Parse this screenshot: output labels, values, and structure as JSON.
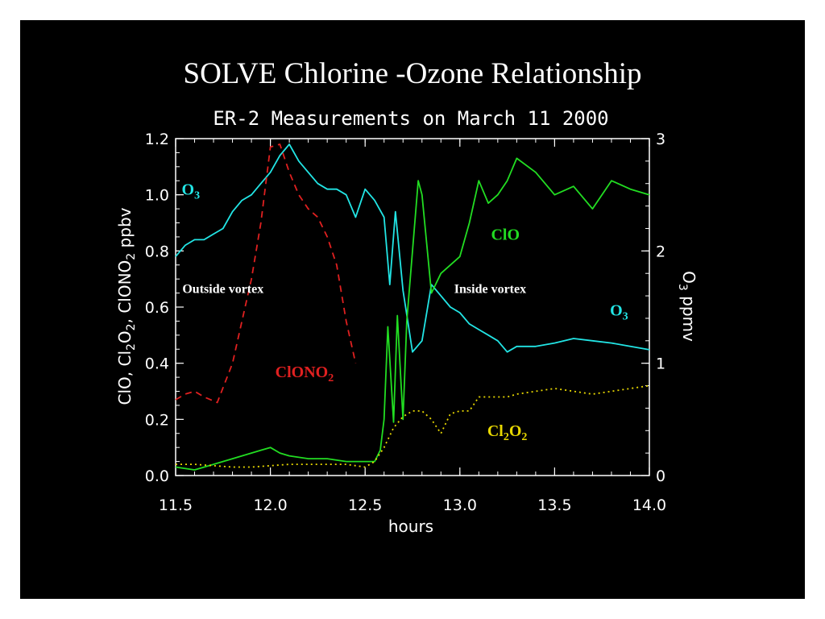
{
  "slide_title": "SOLVE  Chlorine -Ozone Relationship",
  "chart_data": {
    "type": "line",
    "title": "ER-2 Measurements on March 11  2000",
    "xlabel": "hours",
    "ylabel_left": "ClO, Cl2O2, ClONO2  ppbv",
    "ylabel_left_parts": [
      "ClO, Cl",
      "2",
      "O",
      "2",
      ", ClONO",
      "2",
      "  ppbv"
    ],
    "ylabel_right": "O3 ppmv",
    "ylabel_right_parts": [
      "O",
      "3",
      " ppmv"
    ],
    "xlim": [
      11.5,
      14.0
    ],
    "ylim_left": [
      0.0,
      1.2
    ],
    "ylim_right": [
      0,
      3
    ],
    "x_ticks": [
      "11.5",
      "12.0",
      "12.5",
      "13.0",
      "13.5",
      "14.0"
    ],
    "y_left_ticks": [
      "0.0",
      "0.2",
      "0.4",
      "0.6",
      "0.8",
      "1.0",
      "1.2"
    ],
    "y_right_ticks": [
      "0",
      "1",
      "2",
      "3"
    ],
    "grid": false,
    "background": "#000000",
    "colors": {
      "O3": "#22e5e5",
      "ClO": "#22dd22",
      "ClONO2": "#e02020",
      "Cl2O2": "#e8d800",
      "axes": "#ffffff"
    },
    "series": [
      {
        "name": "O3",
        "axis": "right",
        "style": "solid",
        "x": [
          11.5,
          11.55,
          11.6,
          11.65,
          11.7,
          11.75,
          11.8,
          11.85,
          11.9,
          11.95,
          12.0,
          12.05,
          12.1,
          12.15,
          12.2,
          12.25,
          12.3,
          12.35,
          12.4,
          12.45,
          12.5,
          12.55,
          12.6,
          12.63,
          12.66,
          12.7,
          12.75,
          12.8,
          12.85,
          12.9,
          12.95,
          13.0,
          13.05,
          13.1,
          13.15,
          13.2,
          13.25,
          13.3,
          13.4,
          13.5,
          13.6,
          13.7,
          13.8,
          13.9,
          14.0
        ],
        "y": [
          1.95,
          2.05,
          2.1,
          2.1,
          2.15,
          2.2,
          2.35,
          2.45,
          2.5,
          2.6,
          2.7,
          2.85,
          2.95,
          2.8,
          2.7,
          2.6,
          2.55,
          2.55,
          2.5,
          2.3,
          2.55,
          2.45,
          2.3,
          1.7,
          2.35,
          1.65,
          1.1,
          1.2,
          1.7,
          1.6,
          1.5,
          1.45,
          1.35,
          1.3,
          1.25,
          1.2,
          1.1,
          1.15,
          1.15,
          1.18,
          1.22,
          1.2,
          1.18,
          1.15,
          1.12
        ],
        "label": "O3"
      },
      {
        "name": "ClO",
        "axis": "left",
        "style": "solid",
        "x": [
          11.5,
          11.6,
          11.7,
          11.8,
          11.9,
          11.95,
          12.0,
          12.05,
          12.1,
          12.2,
          12.3,
          12.4,
          12.5,
          12.55,
          12.58,
          12.6,
          12.62,
          12.65,
          12.67,
          12.7,
          12.72,
          12.75,
          12.78,
          12.8,
          12.85,
          12.9,
          12.95,
          13.0,
          13.05,
          13.1,
          13.15,
          13.2,
          13.25,
          13.3,
          13.4,
          13.5,
          13.6,
          13.7,
          13.8,
          13.9,
          14.0
        ],
        "y": [
          0.03,
          0.02,
          0.04,
          0.06,
          0.08,
          0.09,
          0.1,
          0.08,
          0.07,
          0.06,
          0.06,
          0.05,
          0.05,
          0.05,
          0.09,
          0.2,
          0.53,
          0.19,
          0.57,
          0.2,
          0.55,
          0.8,
          1.05,
          1.0,
          0.65,
          0.72,
          0.75,
          0.78,
          0.9,
          1.05,
          0.97,
          1.0,
          1.05,
          1.13,
          1.08,
          1.0,
          1.03,
          0.95,
          1.05,
          1.02,
          1.0
        ],
        "label": "ClO"
      },
      {
        "name": "ClONO2",
        "axis": "left",
        "style": "dashed",
        "x": [
          11.5,
          11.55,
          11.6,
          11.65,
          11.72,
          11.8,
          11.85,
          11.9,
          11.95,
          12.0,
          12.05,
          12.1,
          12.15,
          12.2,
          12.25,
          12.3,
          12.35,
          12.4,
          12.45
        ],
        "y": [
          0.27,
          0.29,
          0.3,
          0.28,
          0.26,
          0.4,
          0.55,
          0.7,
          0.9,
          1.17,
          1.18,
          1.08,
          1.0,
          0.95,
          0.92,
          0.85,
          0.75,
          0.55,
          0.4
        ],
        "label": "ClONO2"
      },
      {
        "name": "Cl2O2",
        "axis": "left",
        "style": "dotted",
        "x": [
          11.5,
          11.6,
          11.7,
          11.8,
          11.9,
          12.0,
          12.1,
          12.2,
          12.3,
          12.4,
          12.5,
          12.55,
          12.6,
          12.65,
          12.7,
          12.75,
          12.8,
          12.85,
          12.9,
          12.95,
          13.0,
          13.05,
          13.1,
          13.15,
          13.2,
          13.25,
          13.3,
          13.4,
          13.5,
          13.6,
          13.7,
          13.8,
          13.9,
          14.0
        ],
        "y": [
          0.04,
          0.04,
          0.035,
          0.03,
          0.03,
          0.035,
          0.04,
          0.04,
          0.04,
          0.04,
          0.03,
          0.05,
          0.1,
          0.17,
          0.21,
          0.23,
          0.23,
          0.2,
          0.15,
          0.22,
          0.23,
          0.23,
          0.28,
          0.28,
          0.28,
          0.28,
          0.29,
          0.3,
          0.31,
          0.3,
          0.29,
          0.3,
          0.31,
          0.32
        ],
        "label": "Cl2O2"
      }
    ],
    "annotations": [
      {
        "id": "o3-left",
        "base": "O",
        "sub": "3",
        "color": "#22e5e5",
        "x": 11.58,
        "y": 1.0,
        "axis": "left"
      },
      {
        "id": "o3-right",
        "base": "O",
        "sub": "3",
        "color": "#22e5e5",
        "x": 13.84,
        "y": 0.57,
        "axis": "left"
      },
      {
        "id": "clo",
        "base": "ClO",
        "sub": "",
        "color": "#22dd22",
        "x": 13.24,
        "y": 0.84,
        "axis": "left"
      },
      {
        "id": "clono2",
        "base": "ClONO",
        "sub": "2",
        "color": "#e02020",
        "x": 12.18,
        "y": 0.35,
        "axis": "left"
      },
      {
        "id": "cl2o2",
        "base": "Cl",
        "sub": "2",
        "base2": "O",
        "sub2": "2",
        "color": "#e8d800",
        "x": 13.25,
        "y": 0.14,
        "axis": "left"
      },
      {
        "id": "outside-vortex",
        "base": "Outside vortex",
        "sub": "",
        "color": "#ffffff",
        "x": 11.75,
        "y": 0.65,
        "axis": "left"
      },
      {
        "id": "inside-vortex",
        "base": "Inside vortex",
        "sub": "",
        "color": "#ffffff",
        "x": 13.16,
        "y": 0.65,
        "axis": "left"
      }
    ]
  }
}
